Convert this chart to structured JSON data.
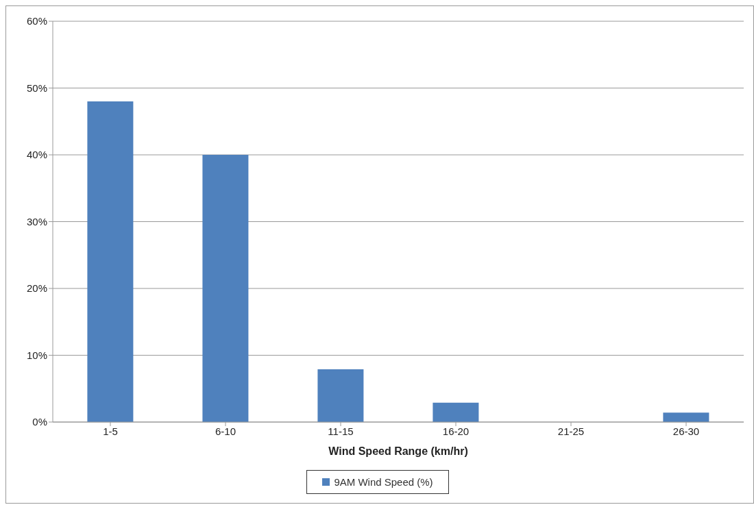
{
  "chart_data": {
    "type": "bar",
    "xlabel": "Wind Speed Range (km/hr)",
    "categories": [
      "1-5",
      "6-10",
      "11-15",
      "16-20",
      "21-25",
      "26-30"
    ],
    "series": [
      {
        "name": "9AM Wind Speed (%)",
        "color": "#4f81bd",
        "values": [
          48,
          40,
          7.9,
          2.9,
          0,
          1.4
        ]
      }
    ],
    "ylim": [
      0,
      60
    ],
    "yticks": [
      {
        "value": 0,
        "label": "0%"
      },
      {
        "value": 10,
        "label": "10%"
      },
      {
        "value": 20,
        "label": "20%"
      },
      {
        "value": 30,
        "label": "30%"
      },
      {
        "value": 40,
        "label": "40%"
      },
      {
        "value": 50,
        "label": "50%"
      },
      {
        "value": 60,
        "label": "60%"
      }
    ],
    "grid": "y",
    "legend": "bottom"
  }
}
